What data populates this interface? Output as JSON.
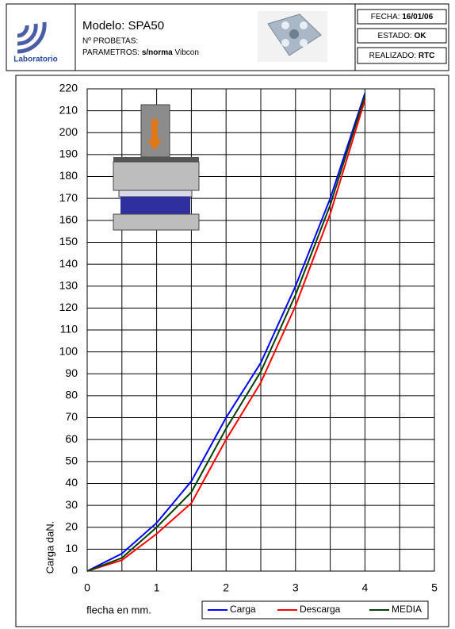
{
  "header": {
    "logo": "Laboratorio",
    "modelo": "Modelo: SPA50",
    "probetas": "Nº PROBETAS:",
    "parametros_label": "PARAMETROS:",
    "parametros_norma": "s/norma",
    "parametros_value": "Vibcon",
    "fecha_label": "FECHA:",
    "fecha": "16/01/06",
    "estado_label": "ESTADO:",
    "estado": "OK",
    "realizado_label": "REALIZADO:",
    "realizado": "RTC"
  },
  "chart_data": {
    "type": "line",
    "x_label": "flecha en mm.",
    "y_label": "Carga daN.",
    "x": [
      0,
      0.5,
      1,
      1.5,
      2,
      2.5,
      3,
      3.5,
      4
    ],
    "series": [
      {
        "name": "Carga",
        "color": "#0000ff",
        "values": [
          0,
          8,
          22,
          41,
          70,
          95,
          130,
          170,
          218
        ]
      },
      {
        "name": "Descarga",
        "color": "#ff0000",
        "values": [
          0,
          5,
          17,
          31,
          60,
          86,
          121,
          163,
          215
        ]
      },
      {
        "name": "MEDIA",
        "color": "#004000",
        "values": [
          0,
          6,
          20,
          36,
          65,
          91,
          126,
          167,
          217
        ]
      }
    ],
    "xlim": [
      0,
      5
    ],
    "xticks": [
      0,
      1,
      2,
      3,
      4,
      5
    ],
    "ylim": [
      0,
      220
    ],
    "yticks": [
      0,
      10,
      20,
      30,
      40,
      50,
      60,
      70,
      80,
      90,
      100,
      110,
      120,
      130,
      140,
      150,
      160,
      170,
      180,
      190,
      200,
      210,
      220
    ],
    "grid": true,
    "legend": "bottom"
  }
}
